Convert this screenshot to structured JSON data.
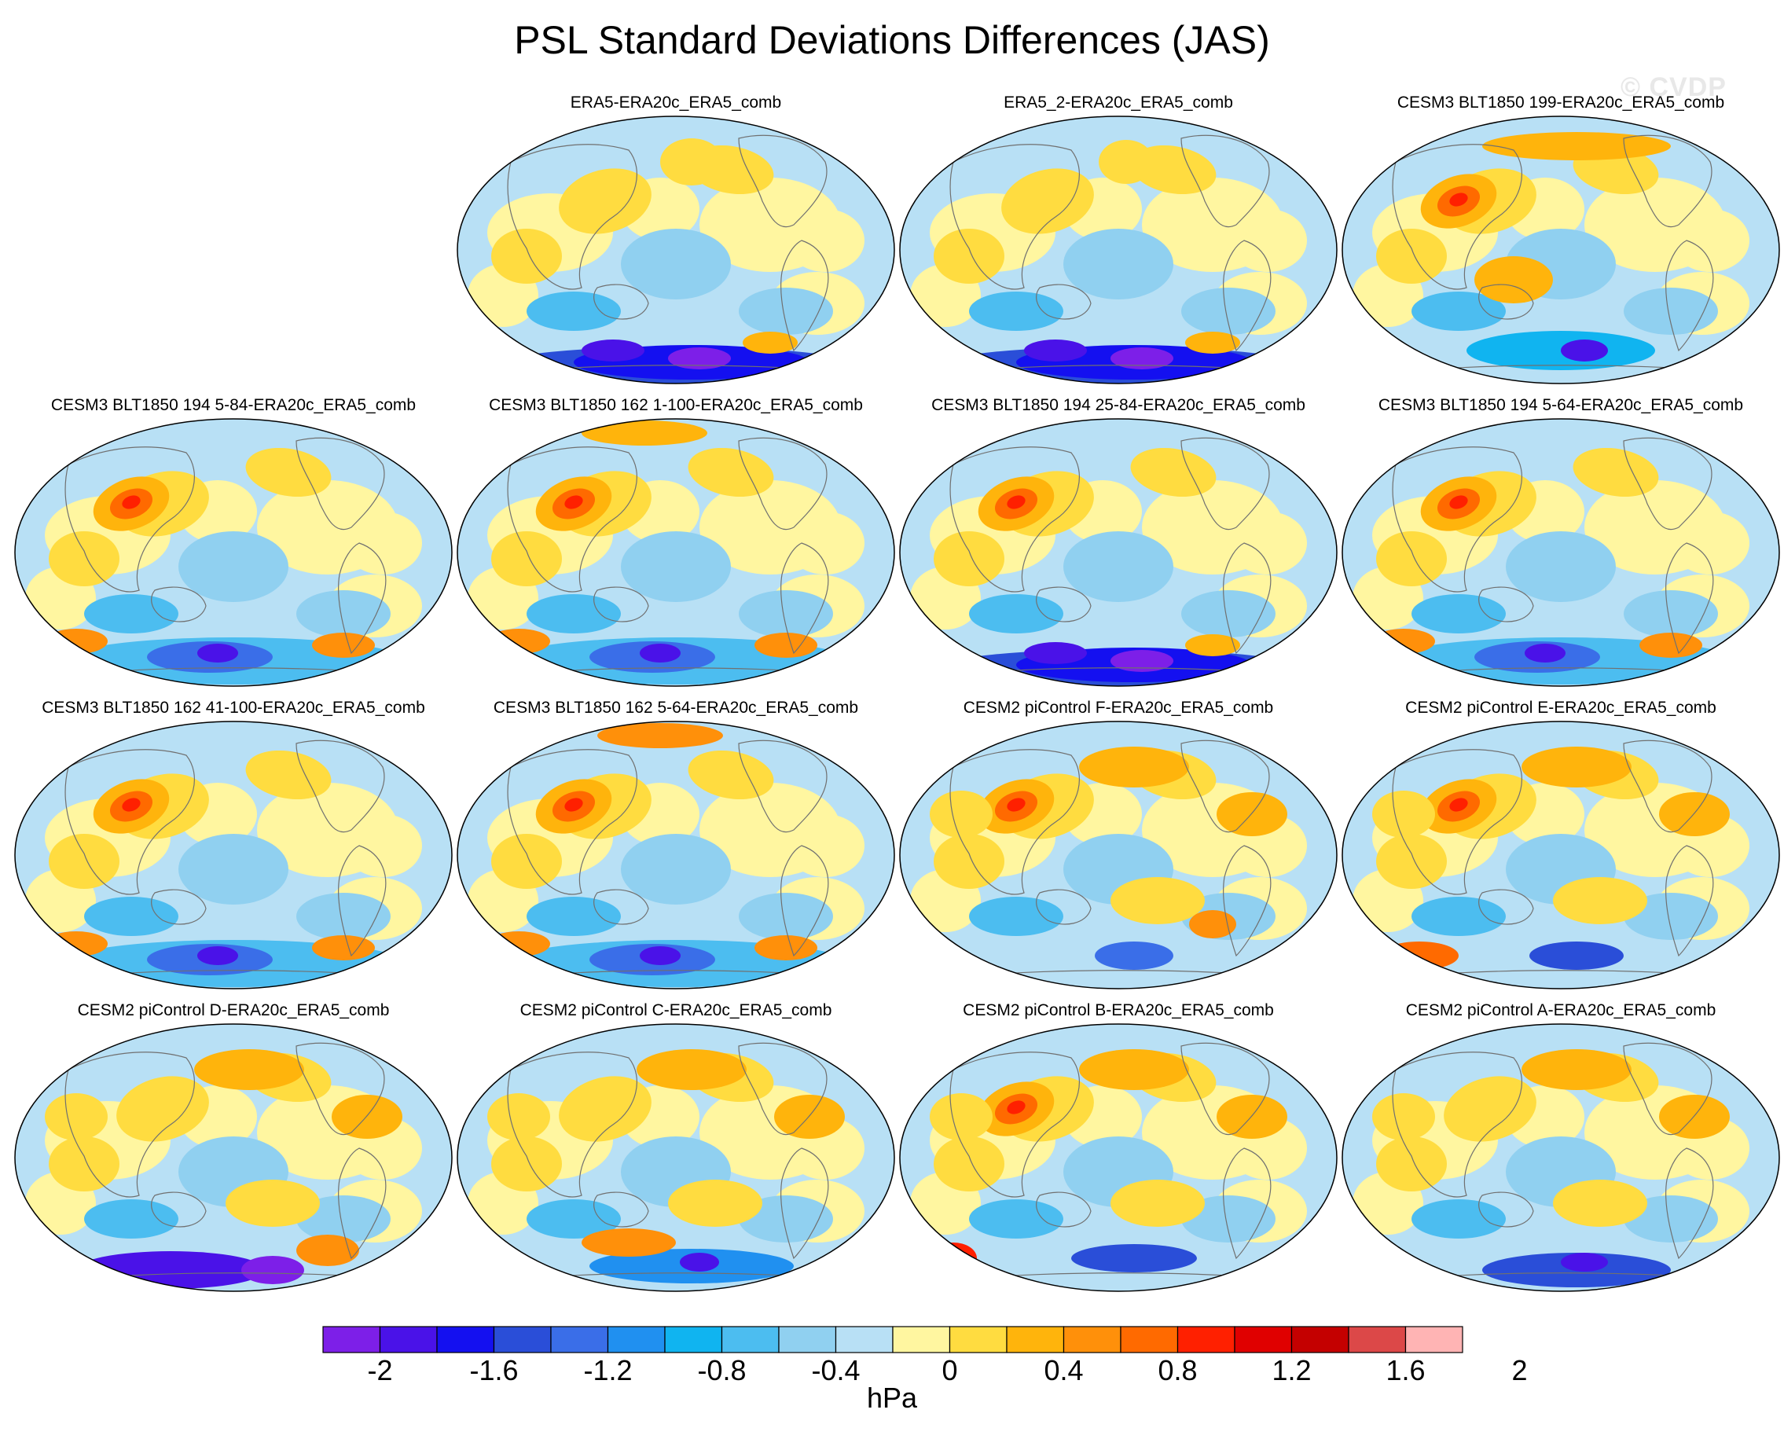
{
  "title": "PSL Standard Deviations Differences (JAS)",
  "watermark": "© CVDP",
  "units": "hPa",
  "colorbar": {
    "colors": [
      "#7d1fe8",
      "#4a12e8",
      "#1410f0",
      "#2a4ed8",
      "#3a6ee8",
      "#2090f0",
      "#10b4f0",
      "#4cbdf0",
      "#90d0f0",
      "#b8e0f5",
      "#fff6a0",
      "#ffdc40",
      "#ffb40c",
      "#ff900a",
      "#ff6a00",
      "#ff2000",
      "#e00000",
      "#c40000",
      "#dc4848",
      "#ffb4b4"
    ],
    "tick_labels": [
      "-2",
      "-1.6",
      "-1.2",
      "-0.8",
      "-0.4",
      "0",
      "0.4",
      "0.8",
      "1.2",
      "1.6",
      "2"
    ]
  },
  "panels": [
    {
      "title": "ERA5-ERA20c_ERA5_comb"
    },
    {
      "title": "ERA5_2-ERA20c_ERA5_comb"
    },
    {
      "title": "CESM3 BLT1850 199-ERA20c_ERA5_comb"
    },
    {
      "title": "CESM3 BLT1850 194 5-84-ERA20c_ERA5_comb"
    },
    {
      "title": "CESM3 BLT1850 162 1-100-ERA20c_ERA5_comb"
    },
    {
      "title": "CESM3 BLT1850 194 25-84-ERA20c_ERA5_comb"
    },
    {
      "title": "CESM3 BLT1850 194 5-64-ERA20c_ERA5_comb"
    },
    {
      "title": "CESM3 BLT1850 162 41-100-ERA20c_ERA5_comb"
    },
    {
      "title": "CESM3 BLT1850 162 5-64-ERA20c_ERA5_comb"
    },
    {
      "title": "CESM2 piControl F-ERA20c_ERA5_comb"
    },
    {
      "title": "CESM2 piControl E-ERA20c_ERA5_comb"
    },
    {
      "title": "CESM2 piControl D-ERA20c_ERA5_comb"
    },
    {
      "title": "CESM2 piControl C-ERA20c_ERA5_comb"
    },
    {
      "title": "CESM2 piControl B-ERA20c_ERA5_comb"
    },
    {
      "title": "CESM2 piControl A-ERA20c_ERA5_comb"
    }
  ]
}
